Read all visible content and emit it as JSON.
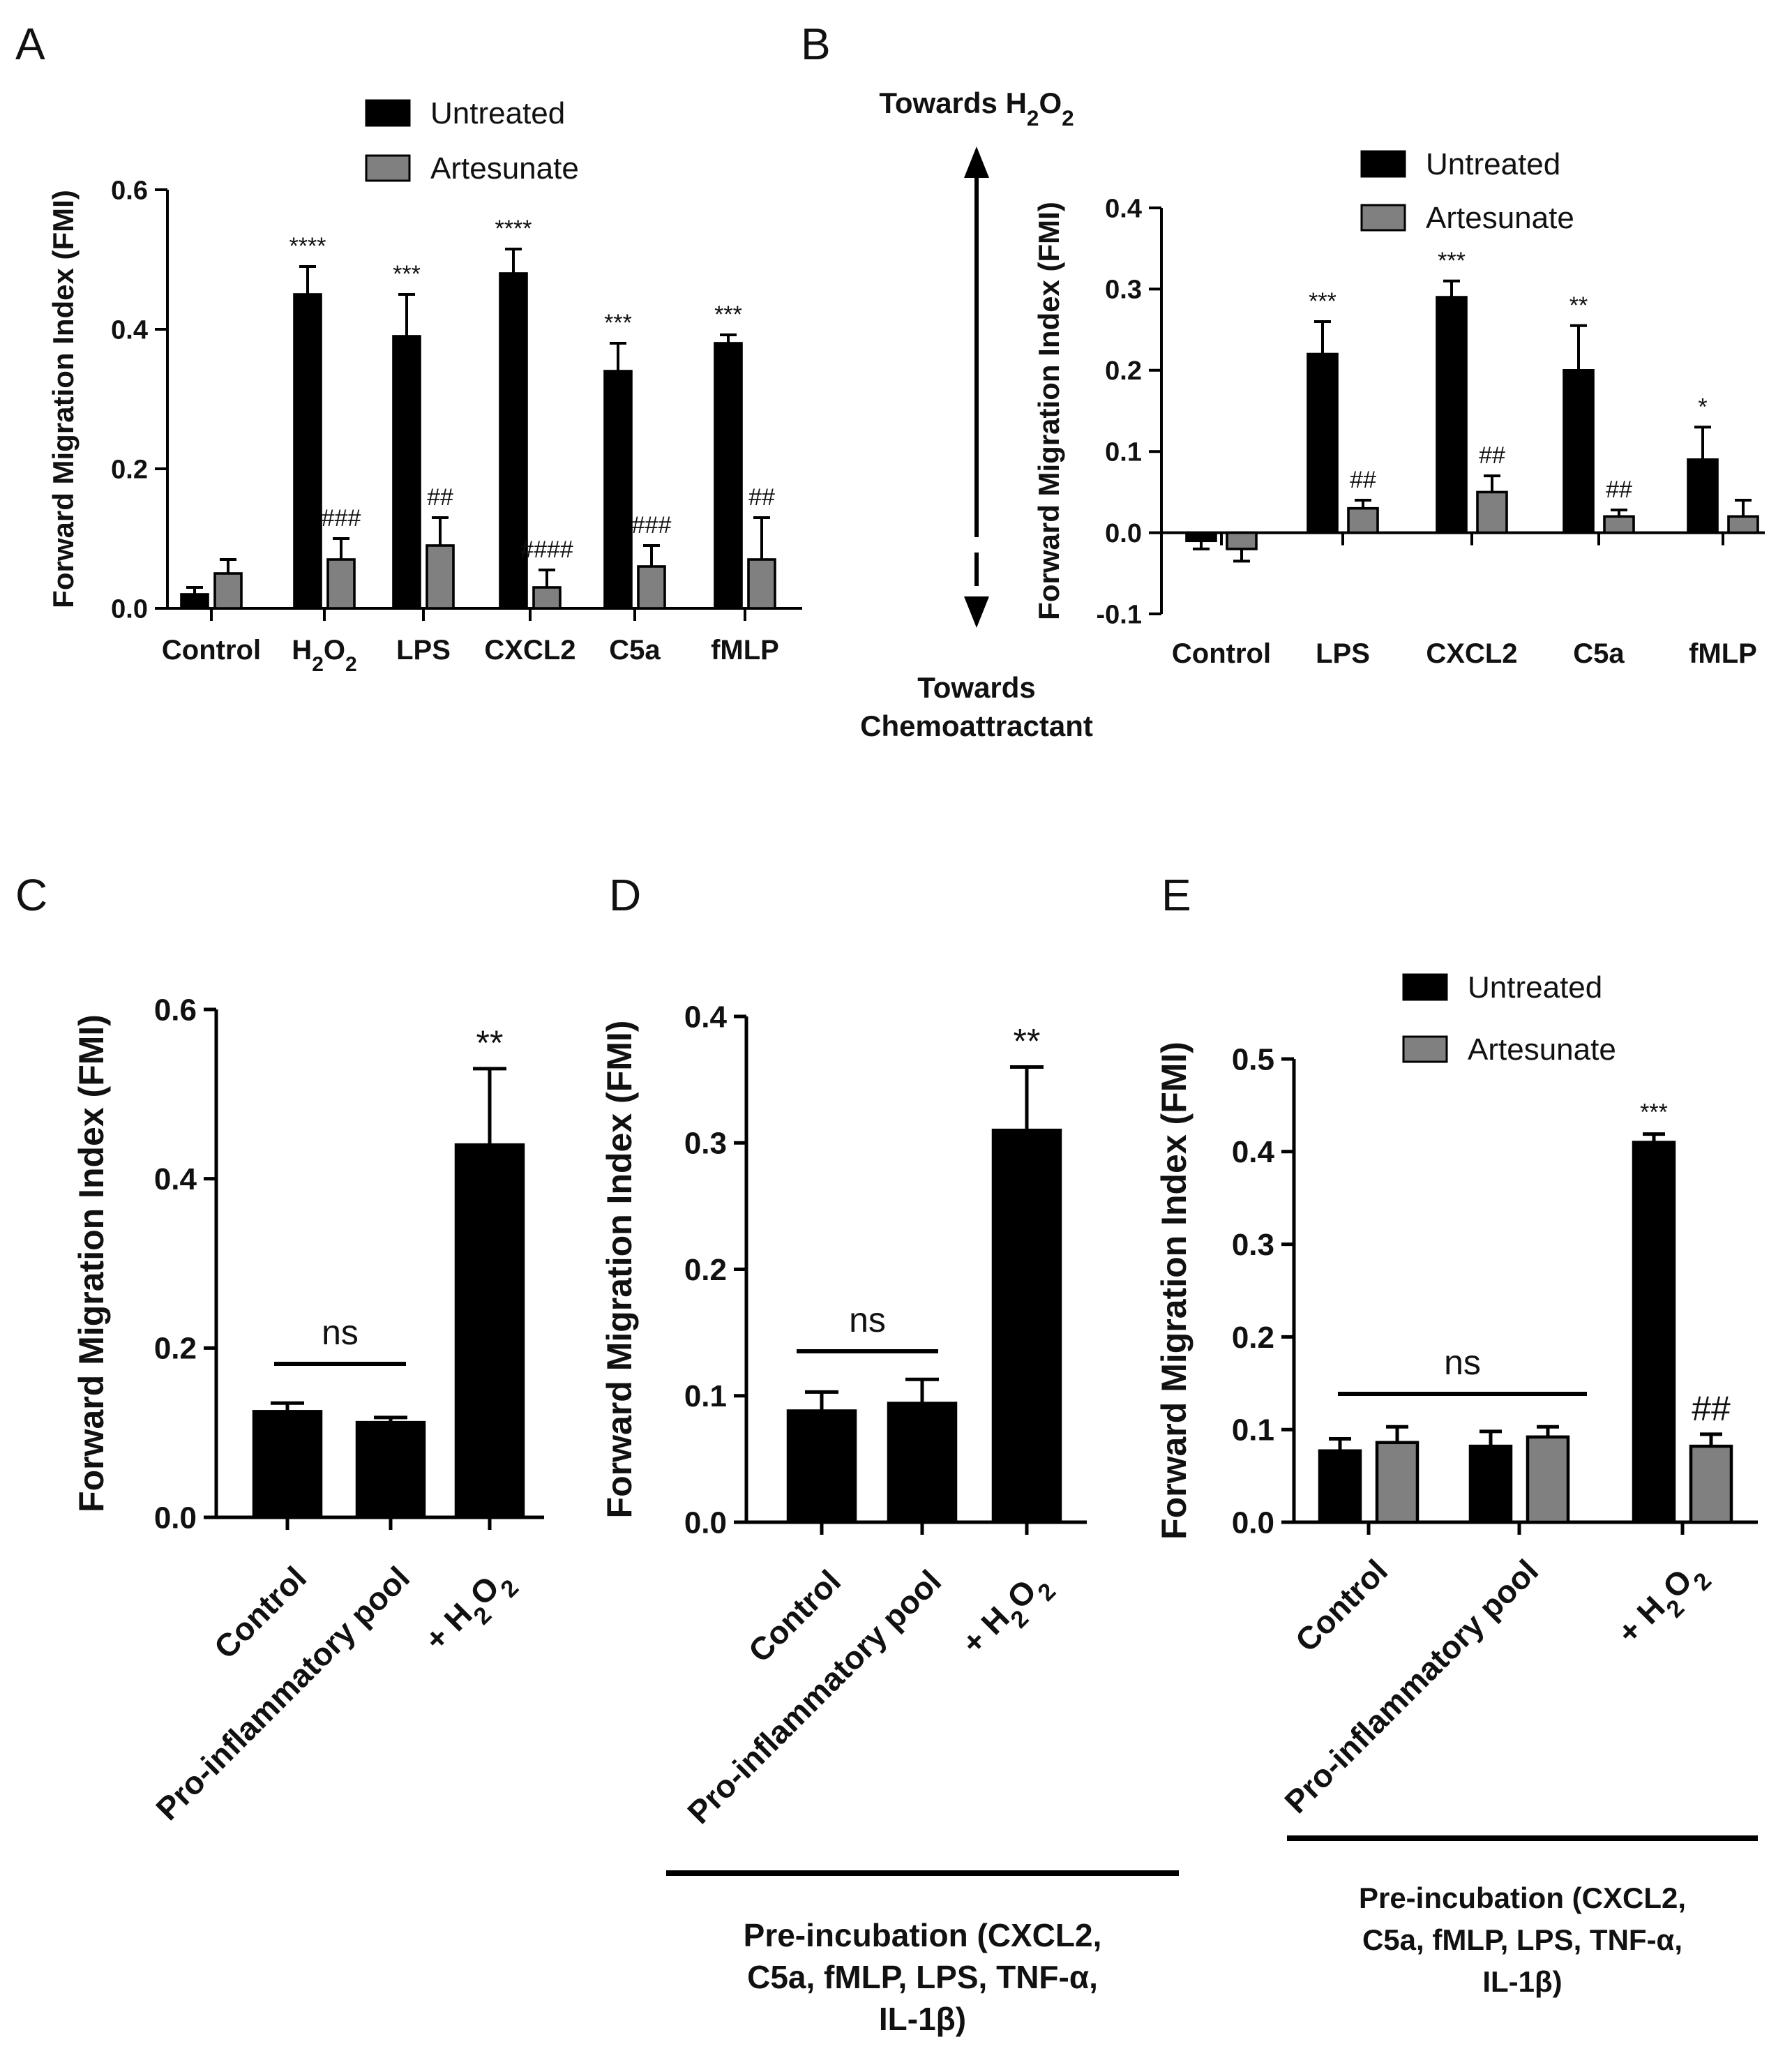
{
  "figure": {
    "panels": [
      "A",
      "B",
      "C",
      "D",
      "E"
    ]
  },
  "colors": {
    "untreated": "#000000",
    "artesunate": "#808080",
    "axis": "#000000"
  },
  "chart_data": [
    {
      "id": "A",
      "type": "bar",
      "ylabel": "Forward Migration Index (FMI)",
      "ylim": [
        0,
        0.6
      ],
      "yticks": [
        "0.0",
        "0.2",
        "0.4",
        "0.6"
      ],
      "categories": [
        "Control",
        "H2O2",
        "LPS",
        "CXCL2",
        "C5a",
        "fMLP"
      ],
      "series": [
        {
          "name": "Untreated",
          "values": [
            0.02,
            0.45,
            0.39,
            0.48,
            0.34,
            0.38
          ],
          "errors": [
            0.01,
            0.04,
            0.06,
            0.035,
            0.04,
            0.012
          ],
          "labels": [
            "",
            "****",
            "***",
            "****",
            "***",
            "***"
          ]
        },
        {
          "name": "Artesunate",
          "values": [
            0.05,
            0.07,
            0.09,
            0.03,
            0.06,
            0.07
          ],
          "errors": [
            0.02,
            0.03,
            0.04,
            0.025,
            0.03,
            0.06
          ],
          "labels": [
            "",
            "###",
            "##",
            "####",
            "###",
            "##"
          ]
        }
      ],
      "legend": [
        "Untreated",
        "Artesunate"
      ]
    },
    {
      "id": "B",
      "type": "bar",
      "ylabel": "Forward Migration Index (FMI)",
      "ylim": [
        -0.1,
        0.4
      ],
      "yticks": [
        "-0.1",
        "0.0",
        "0.1",
        "0.2",
        "0.3",
        "0.4"
      ],
      "categories": [
        "Control",
        "LPS",
        "CXCL2",
        "C5a",
        "fMLP"
      ],
      "series": [
        {
          "name": "Untreated",
          "values": [
            -0.01,
            0.22,
            0.29,
            0.2,
            0.09
          ],
          "errors": [
            0.01,
            0.04,
            0.02,
            0.055,
            0.04
          ],
          "labels": [
            "",
            "***",
            "***",
            "**",
            "*"
          ]
        },
        {
          "name": "Artesunate",
          "values": [
            -0.02,
            0.03,
            0.05,
            0.02,
            0.02
          ],
          "errors": [
            0.015,
            0.01,
            0.02,
            0.008,
            0.02
          ],
          "labels": [
            "",
            "##",
            "##",
            "##",
            ""
          ]
        }
      ],
      "legend": [
        "Untreated",
        "Artesunate"
      ],
      "annotations": {
        "top": "Towards H2O2",
        "bottom_line1": "Towards",
        "bottom_line2": "Chemoattractant"
      }
    },
    {
      "id": "C",
      "type": "bar",
      "ylabel": "Forward Migration Index (FMI)",
      "ylim": [
        0,
        0.6
      ],
      "yticks": [
        "0.0",
        "0.2",
        "0.4",
        "0.6"
      ],
      "categories": [
        "Control",
        "Pro-inflammatory pool",
        "+ H2O2"
      ],
      "series": [
        {
          "name": "Untreated",
          "values": [
            0.125,
            0.112,
            0.44
          ],
          "errors": [
            0.01,
            0.006,
            0.09
          ],
          "labels": [
            "",
            "",
            "**"
          ]
        }
      ],
      "bracket_label": "ns"
    },
    {
      "id": "D",
      "type": "bar",
      "ylabel": "Forward Migration Index (FMI)",
      "ylim": [
        0,
        0.4
      ],
      "yticks": [
        "0.0",
        "0.1",
        "0.2",
        "0.3",
        "0.4"
      ],
      "categories": [
        "Control",
        "Pro-inflammatory pool",
        "+ H2O2"
      ],
      "series": [
        {
          "name": "Untreated",
          "values": [
            0.088,
            0.094,
            0.31
          ],
          "errors": [
            0.015,
            0.019,
            0.05
          ],
          "labels": [
            "",
            "",
            "**"
          ]
        }
      ],
      "bracket_label": "ns",
      "note_lines": [
        "Pre-incubation (CXCL2,",
        "C5a, fMLP, LPS, TNF-α,",
        "IL-1β)"
      ]
    },
    {
      "id": "E",
      "type": "bar",
      "ylabel": "Forward Migration Index (FMI)",
      "ylim": [
        0,
        0.5
      ],
      "yticks": [
        "0.0",
        "0.1",
        "0.2",
        "0.3",
        "0.4",
        "0.5"
      ],
      "categories": [
        "Control",
        "Pro-inflammatory pool",
        "+ H2O2"
      ],
      "series": [
        {
          "name": "Untreated",
          "values": [
            0.077,
            0.082,
            0.41
          ],
          "errors": [
            0.013,
            0.016,
            0.009
          ],
          "labels": [
            "",
            "",
            "***"
          ]
        },
        {
          "name": "Artesunate",
          "values": [
            0.086,
            0.092,
            0.082
          ],
          "errors": [
            0.017,
            0.011,
            0.013
          ],
          "labels": [
            "",
            "",
            "##"
          ]
        }
      ],
      "legend": [
        "Untreated",
        "Artesunate"
      ],
      "bracket_label": "ns",
      "note_lines": [
        "Pre-incubation (CXCL2,",
        "C5a, fMLP, LPS, TNF-α,",
        "IL-1β)"
      ]
    }
  ]
}
